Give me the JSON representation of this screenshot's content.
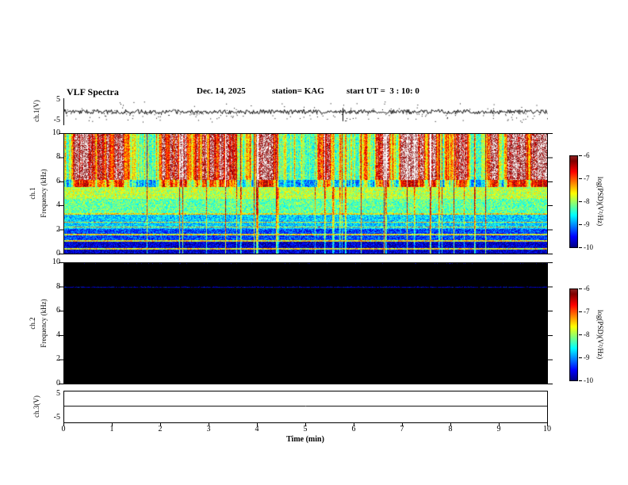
{
  "header": {
    "title": "VLF Spectra",
    "date": "Dec. 14, 2025",
    "station": "station= KAG",
    "start_ut": "start UT =  3 : 10: 0"
  },
  "axes": {
    "ch1_wave": {
      "label": "ch.1(V)",
      "ytick_top": "5",
      "ytick_bottom": "-5"
    },
    "ch1_spec": {
      "channel": "ch.1",
      "ylabel": "Frequency (kHz)",
      "yticks": [
        "10",
        "8",
        "6",
        "4",
        "2",
        "0"
      ]
    },
    "ch2_spec": {
      "channel": "ch.2",
      "ylabel": "Frequency (kHz)",
      "yticks": [
        "10",
        "8",
        "6",
        "4",
        "2",
        "0"
      ]
    },
    "ch3_wave": {
      "label": "ch.3(V)",
      "ytick_top": "5",
      "ytick_bottom": "-5"
    },
    "x": {
      "label": "Time (min)",
      "ticks": [
        "0",
        "1",
        "2",
        "3",
        "4",
        "5",
        "6",
        "7",
        "8",
        "9",
        "10"
      ]
    },
    "colorbar1": {
      "label": "log(PSD)(V²/Hz)",
      "ticks": [
        "-6",
        "-7",
        "-8",
        "-9",
        "-10"
      ]
    },
    "colorbar2": {
      "label": "log(PSD)(V²/Hz)",
      "ticks": [
        "-6",
        "-7",
        "-8",
        "-9",
        "-10"
      ]
    }
  },
  "chart_data": [
    {
      "type": "line",
      "name": "ch1-waveform",
      "title": "ch.1(V) time series",
      "xlabel": "Time (min)",
      "ylabel": "ch.1(V)",
      "xlim": [
        0,
        10
      ],
      "ylim": [
        -5,
        5
      ],
      "baseline_v": 0,
      "noise_amp_v": 0.8,
      "spike": {
        "t_min": 5.75,
        "amp_v": -3.5
      },
      "description": "Continuous low-amplitude noise around 0 V for the full 10 minutes with one brief negative spike near 5.75 min."
    },
    {
      "type": "heatmap",
      "name": "ch1-spectrogram",
      "title": "ch.1 VLF spectrogram",
      "xlabel": "Time (min)",
      "ylabel": "Frequency (kHz)",
      "xlim": [
        0,
        10
      ],
      "ylim": [
        0,
        10
      ],
      "colormap": "jet",
      "colorbar_label": "log(PSD)(V²/Hz)",
      "colorbar_ticks": [
        -6,
        -7,
        -8,
        -9,
        -10
      ],
      "bands": [
        {
          "f_khz": [
            6,
            10
          ],
          "psd_log10": -6.3,
          "appearance": "intense red/white vertical streaks with green gaps"
        },
        {
          "f_khz": [
            4.5,
            6
          ],
          "psd_log10": -7.2,
          "appearance": "yellow-green activity"
        },
        {
          "f_khz": [
            3,
            4.5
          ],
          "psd_log10": -7.8,
          "appearance": "green-cyan"
        },
        {
          "f_khz": [
            2,
            3
          ],
          "psd_log10": -8.6,
          "appearance": "cyan-blue"
        },
        {
          "f_khz": [
            0,
            2
          ],
          "psd_log10": -9.4,
          "appearance": "dark blue background"
        }
      ],
      "carrier_lines_khz": [
        0.35,
        1.05,
        1.55,
        2.2,
        2.6,
        3.3
      ],
      "vertical_streaks": "frequent broadband sferic lines spanning 0-10 kHz"
    },
    {
      "type": "heatmap",
      "name": "ch2-spectrogram",
      "title": "ch.2 VLF spectrogram",
      "xlabel": "Time (min)",
      "ylabel": "Frequency (kHz)",
      "xlim": [
        0,
        10
      ],
      "ylim": [
        0,
        10
      ],
      "colormap": "jet",
      "colorbar_label": "log(PSD)(V²/Hz)",
      "colorbar_ticks": [
        -6,
        -7,
        -8,
        -9,
        -10
      ],
      "background_psd_log10": -10,
      "carrier_lines_khz": [
        8.0
      ],
      "description": "No signal above the colour floor (black panel) except a faint dark-blue horizontal line near 8 kHz."
    },
    {
      "type": "line",
      "name": "ch3-waveform",
      "title": "ch.3(V) time series",
      "xlabel": "Time (min)",
      "ylabel": "ch.3(V)",
      "xlim": [
        0,
        10
      ],
      "ylim": [
        -5,
        5
      ],
      "constant_value_v": 0.5,
      "description": "Flat constant trace slightly above 0 V for the full 10 minutes."
    }
  ]
}
